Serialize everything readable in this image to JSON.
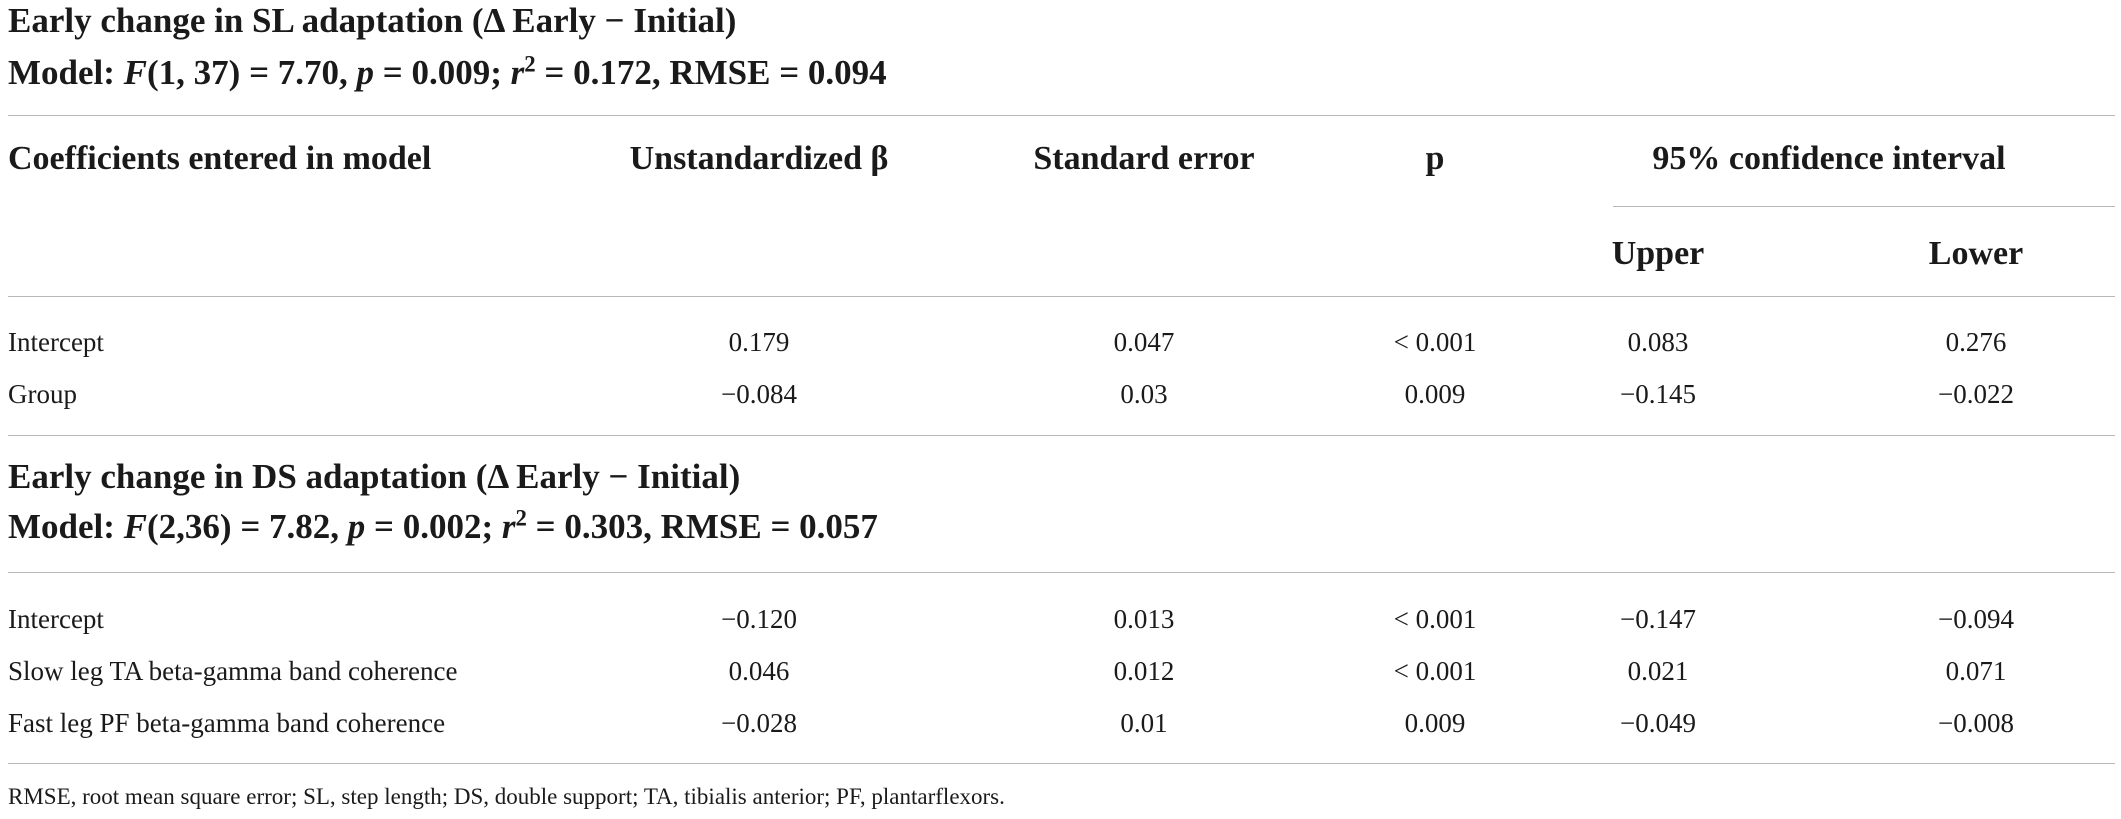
{
  "section1": {
    "title": "Early change in SL adaptation (Δ Early − Initial)",
    "model_prefix": "Model: ",
    "model_F": "F",
    "model_F_args": "(1, 37) = 7.70, ",
    "model_p": "p",
    "model_p_val": " = 0.009; ",
    "model_r": "r",
    "model_r_sup": "2",
    "model_r_rest": " = 0.172, RMSE = 0.094"
  },
  "columns": {
    "coef": "Coefficients entered in model",
    "beta": "Unstandardized β",
    "se": "Standard error",
    "p": "p",
    "ci": "95% confidence interval",
    "upper": "Upper",
    "lower": "Lower"
  },
  "section1_rows": [
    {
      "label": "Intercept",
      "beta": "0.179",
      "se": "0.047",
      "p": "< 0.001",
      "upper": "0.083",
      "lower": "0.276"
    },
    {
      "label": "Group",
      "beta": "−0.084",
      "se": "0.03",
      "p": "0.009",
      "upper": "−0.145",
      "lower": "−0.022"
    }
  ],
  "section2": {
    "title": "Early change in DS adaptation (Δ Early − Initial)",
    "model_prefix": "Model: ",
    "model_F": "F",
    "model_F_args": "(2,36) = 7.82, ",
    "model_p": "p",
    "model_p_val": " = 0.002; ",
    "model_r": "r",
    "model_r_sup": "2",
    "model_r_rest": " = 0.303, RMSE = 0.057"
  },
  "section2_rows": [
    {
      "label": "Intercept",
      "beta": "−0.120",
      "se": "0.013",
      "p": "< 0.001",
      "upper": "−0.147",
      "lower": "−0.094"
    },
    {
      "label": "Slow leg TA beta-gamma band coherence",
      "beta": "0.046",
      "se": "0.012",
      "p": "< 0.001",
      "upper": "0.021",
      "lower": "0.071"
    },
    {
      "label": "Fast leg PF beta-gamma band coherence",
      "beta": "−0.028",
      "se": "0.01",
      "p": "0.009",
      "upper": "−0.049",
      "lower": "−0.008"
    }
  ],
  "footnote": "RMSE, root mean square error; SL, step length; DS, double support; TA, tibialis anterior; PF, plantarflexors."
}
